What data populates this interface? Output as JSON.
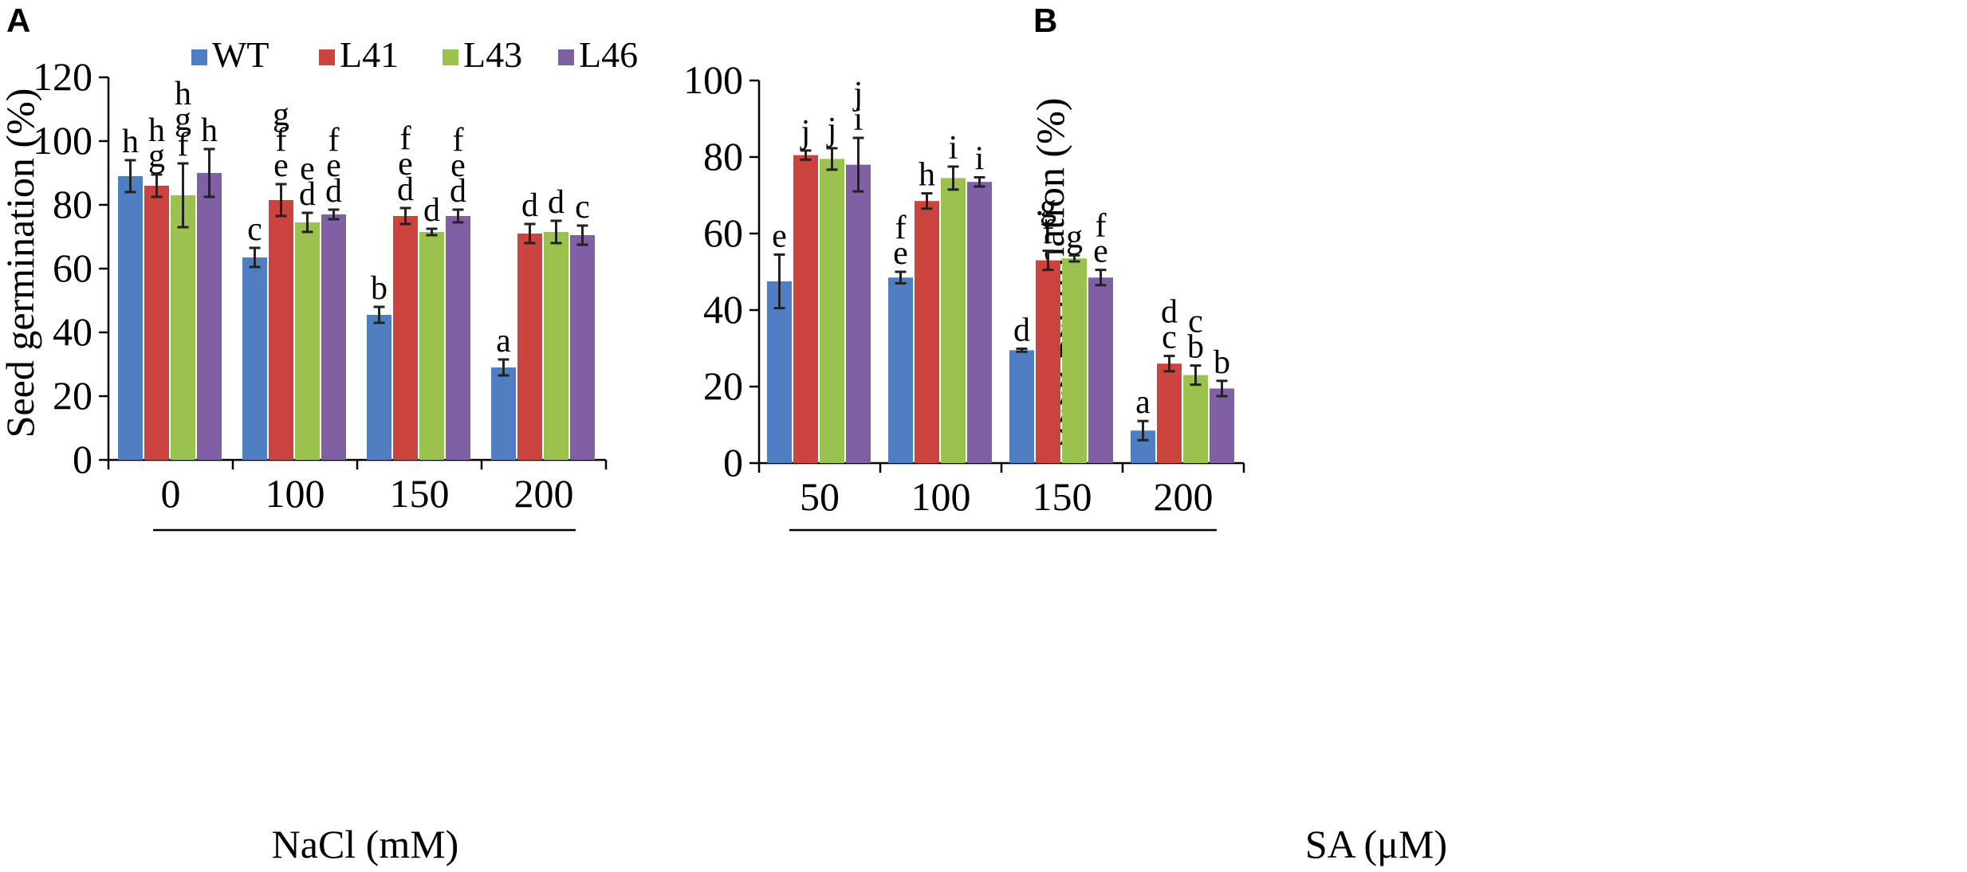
{
  "colors": {
    "WT": "#4f7fc2",
    "L41": "#cc4440",
    "L43": "#9bc24f",
    "L46": "#8060a5",
    "axis": "#000000",
    "error_bar": "#222222"
  },
  "legend": [
    {
      "key": "WT",
      "label": "WT"
    },
    {
      "key": "L41",
      "label": "L41"
    },
    {
      "key": "L43",
      "label": "L43"
    },
    {
      "key": "L46",
      "label": "L46"
    }
  ],
  "chart_data": [
    {
      "panel": "A",
      "type": "bar",
      "title": "",
      "ylabel": "Seed germination (%)",
      "xlabel": "NaCl (mM)",
      "ylim": [
        0,
        120
      ],
      "yticks": [
        "0",
        "20",
        "40",
        "60",
        "80",
        "100",
        "120"
      ],
      "categories": [
        "0",
        "100",
        "150",
        "200"
      ],
      "legend_position": "top",
      "series": [
        {
          "name": "WT",
          "values": [
            89,
            63.5,
            45.5,
            29
          ],
          "errors": [
            5,
            3,
            2.5,
            2.5
          ],
          "letters": [
            [
              "h"
            ],
            [
              "c"
            ],
            [
              "b"
            ],
            [
              "a"
            ]
          ]
        },
        {
          "name": "L41",
          "values": [
            86,
            81.5,
            76.5,
            71
          ],
          "errors": [
            3.5,
            5,
            2.5,
            3
          ],
          "letters": [
            [
              "h",
              "g"
            ],
            [
              "g",
              "f",
              "e"
            ],
            [
              "f",
              "e",
              "d"
            ],
            [
              "d"
            ]
          ]
        },
        {
          "name": "L43",
          "values": [
            83,
            74.5,
            71.5,
            71.5
          ],
          "errors": [
            10,
            3,
            1,
            3.5
          ],
          "letters": [
            [
              "h",
              "g",
              "f"
            ],
            [
              "e",
              "d"
            ],
            [
              "d"
            ],
            [
              "d"
            ]
          ]
        },
        {
          "name": "L46",
          "values": [
            90,
            77,
            76.5,
            70.5
          ],
          "errors": [
            7.5,
            1.5,
            2,
            3
          ],
          "letters": [
            [
              "h"
            ],
            [
              "f",
              "e",
              "d"
            ],
            [
              "f",
              "e",
              "d"
            ],
            [
              "c"
            ]
          ]
        }
      ]
    },
    {
      "panel": "B",
      "type": "bar",
      "title": "",
      "ylabel": "Seed germination (%)",
      "xlabel": "SA (μM)",
      "ylim": [
        0,
        100
      ],
      "yticks": [
        "0",
        "20",
        "40",
        "60",
        "80",
        "100"
      ],
      "categories": [
        "50",
        "100",
        "150",
        "200"
      ],
      "legend_position": "top",
      "series": [
        {
          "name": "WT",
          "values": [
            47.5,
            48.5,
            29.5,
            8.5
          ],
          "errors": [
            7,
            1.5,
            0.4,
            2.5
          ],
          "letters": [
            [
              "e"
            ],
            [
              "f",
              "e"
            ],
            [
              "d"
            ],
            [
              "a"
            ]
          ]
        },
        {
          "name": "L41",
          "values": [
            80.5,
            68.5,
            53,
            26
          ],
          "errors": [
            1.2,
            2,
            2.5,
            2
          ],
          "letters": [
            [
              "j"
            ],
            [
              "h"
            ],
            [
              "g",
              "f"
            ],
            [
              "d",
              "c"
            ]
          ]
        },
        {
          "name": "L43",
          "values": [
            79.5,
            74.5,
            53.5,
            23
          ],
          "errors": [
            2.8,
            3,
            0.8,
            2.5
          ],
          "letters": [
            [
              "j"
            ],
            [
              "i"
            ],
            [
              "g"
            ],
            [
              "c",
              "b"
            ]
          ]
        },
        {
          "name": "L46",
          "values": [
            78,
            73.5,
            48.5,
            19.5
          ],
          "errors": [
            7,
            1.2,
            2,
            2
          ],
          "letters": [
            [
              "j",
              "i"
            ],
            [
              "i"
            ],
            [
              "f",
              "e"
            ],
            [
              "b"
            ]
          ]
        }
      ]
    }
  ]
}
